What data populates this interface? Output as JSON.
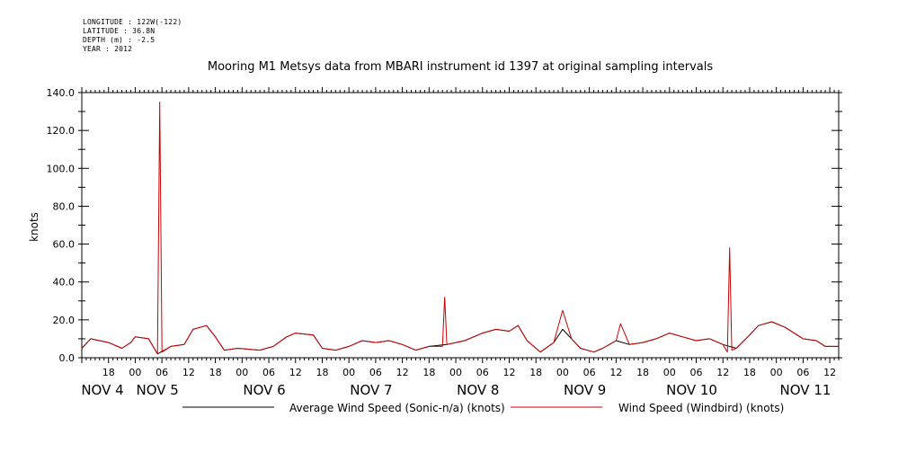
{
  "meta": {
    "longitude": "LONGITUDE : 122W(-122)",
    "latitude": "LATITUDE : 36.8N",
    "depth": "DEPTH (m) : -2.5",
    "year": "YEAR : 2012"
  },
  "chart_data": {
    "type": "line",
    "title": "Mooring M1 Metsys data from MBARI instrument id 1397 at original sampling intervals",
    "ylabel": "knots",
    "xlabel": "",
    "ylim": [
      0,
      140
    ],
    "y_ticks": [
      "0.0",
      "20.0",
      "40.0",
      "60.0",
      "80.0",
      "100.0",
      "120.0",
      "140.0"
    ],
    "x_range_hours": [
      "NOV 4 12:00",
      "NOV 11 14:00"
    ],
    "hour_tick_labels": [
      "18",
      "00",
      "06",
      "12",
      "18",
      "00",
      "06",
      "12",
      "18",
      "00",
      "06",
      "12",
      "18",
      "00",
      "06",
      "12",
      "18",
      "00",
      "06",
      "12",
      "18",
      "00",
      "06",
      "12",
      "18",
      "00",
      "06",
      "12",
      "18",
      "00",
      "06",
      "12"
    ],
    "day_labels": [
      "NOV 4",
      "NOV 5",
      "NOV 6",
      "NOV 7",
      "NOV 8",
      "NOV 9",
      "NOV 10",
      "NOV 11"
    ],
    "series": [
      {
        "name": "Average Wind Speed (Sonic-n/a) (knots)",
        "color": "#000000",
        "points": [
          [
            "NOV 4 12:00",
            5
          ],
          [
            "NOV 4 14:00",
            10
          ],
          [
            "NOV 4 18:00",
            8
          ],
          [
            "NOV 4 21:00",
            5
          ],
          [
            "NOV 4 23:00",
            8
          ],
          [
            "NOV 5 00:00",
            11
          ],
          [
            "NOV 5 03:00",
            10
          ],
          [
            "NOV 5 05:00",
            2
          ],
          [
            "NOV 5 08:00",
            6
          ],
          [
            "NOV 5 11:00",
            7
          ],
          [
            "NOV 5 13:00",
            15
          ],
          [
            "NOV 5 16:00",
            17
          ],
          [
            "NOV 5 18:00",
            11
          ],
          [
            "NOV 5 20:00",
            4
          ],
          [
            "NOV 5 23:00",
            5
          ],
          [
            "NOV 6 04:00",
            4
          ],
          [
            "NOV 6 07:00",
            6
          ],
          [
            "NOV 6 10:00",
            11
          ],
          [
            "NOV 6 12:00",
            13
          ],
          [
            "NOV 6 16:00",
            12
          ],
          [
            "NOV 6 18:00",
            5
          ],
          [
            "NOV 6 21:00",
            4
          ],
          [
            "NOV 7 00:00",
            6
          ],
          [
            "NOV 7 03:00",
            9
          ],
          [
            "NOV 7 06:00",
            8
          ],
          [
            "NOV 7 09:00",
            9
          ],
          [
            "NOV 7 12:00",
            7
          ],
          [
            "NOV 7 15:00",
            4
          ],
          [
            "NOV 7 18:00",
            6
          ],
          [
            "NOV 7 22:00",
            7
          ],
          [
            "NOV 8 02:00",
            9
          ],
          [
            "NOV 8 06:00",
            13
          ],
          [
            "NOV 8 09:00",
            15
          ],
          [
            "NOV 8 12:00",
            14
          ],
          [
            "NOV 8 14:00",
            17
          ],
          [
            "NOV 8 16:00",
            9
          ],
          [
            "NOV 8 19:00",
            3
          ],
          [
            "NOV 8 22:00",
            8
          ],
          [
            "NOV 9 00:00",
            15
          ],
          [
            "NOV 9 02:00",
            10
          ],
          [
            "NOV 9 04:00",
            5
          ],
          [
            "NOV 9 07:00",
            3
          ],
          [
            "NOV 9 09:00",
            5
          ],
          [
            "NOV 9 12:00",
            9
          ],
          [
            "NOV 9 15:00",
            7
          ],
          [
            "NOV 9 18:00",
            8
          ],
          [
            "NOV 9 21:00",
            10
          ],
          [
            "NOV 10 00:00",
            13
          ],
          [
            "NOV 10 03:00",
            11
          ],
          [
            "NOV 10 06:00",
            9
          ],
          [
            "NOV 10 09:00",
            10
          ],
          [
            "NOV 10 12:00",
            7
          ],
          [
            "NOV 10 15:00",
            5
          ],
          [
            "NOV 10 18:00",
            12
          ],
          [
            "NOV 10 20:00",
            17
          ],
          [
            "NOV 10 23:00",
            19
          ],
          [
            "NOV 11 02:00",
            16
          ],
          [
            "NOV 11 06:00",
            10
          ],
          [
            "NOV 11 09:00",
            9
          ],
          [
            "NOV 11 11:00",
            6
          ],
          [
            "NOV 11 14:00",
            6
          ]
        ]
      },
      {
        "name": "Wind Speed (Windbird) (knots)",
        "color": "#cc0000",
        "points": [
          [
            "NOV 4 12:00",
            5
          ],
          [
            "NOV 4 14:00",
            10
          ],
          [
            "NOV 4 18:00",
            8
          ],
          [
            "NOV 4 21:00",
            5
          ],
          [
            "NOV 4 23:00",
            8
          ],
          [
            "NOV 5 00:00",
            11
          ],
          [
            "NOV 5 03:00",
            10
          ],
          [
            "NOV 5 05:00",
            2
          ],
          [
            "NOV 5 05:30",
            135
          ],
          [
            "NOV 5 06:00",
            3
          ],
          [
            "NOV 5 08:00",
            6
          ],
          [
            "NOV 5 11:00",
            7
          ],
          [
            "NOV 5 13:00",
            15
          ],
          [
            "NOV 5 16:00",
            17
          ],
          [
            "NOV 5 18:00",
            11
          ],
          [
            "NOV 5 20:00",
            4
          ],
          [
            "NOV 5 23:00",
            5
          ],
          [
            "NOV 6 04:00",
            4
          ],
          [
            "NOV 6 07:00",
            6
          ],
          [
            "NOV 6 10:00",
            11
          ],
          [
            "NOV 6 12:00",
            13
          ],
          [
            "NOV 6 16:00",
            12
          ],
          [
            "NOV 6 18:00",
            5
          ],
          [
            "NOV 6 21:00",
            4
          ],
          [
            "NOV 7 00:00",
            6
          ],
          [
            "NOV 7 03:00",
            9
          ],
          [
            "NOV 7 06:00",
            8
          ],
          [
            "NOV 7 09:00",
            9
          ],
          [
            "NOV 7 12:00",
            7
          ],
          [
            "NOV 7 15:00",
            4
          ],
          [
            "NOV 7 18:00",
            6
          ],
          [
            "NOV 7 21:00",
            6
          ],
          [
            "NOV 7 21:30",
            32
          ],
          [
            "NOV 7 22:00",
            7
          ],
          [
            "NOV 8 02:00",
            9
          ],
          [
            "NOV 8 06:00",
            13
          ],
          [
            "NOV 8 09:00",
            15
          ],
          [
            "NOV 8 12:00",
            14
          ],
          [
            "NOV 8 14:00",
            17
          ],
          [
            "NOV 8 16:00",
            9
          ],
          [
            "NOV 8 19:00",
            3
          ],
          [
            "NOV 8 22:00",
            8
          ],
          [
            "NOV 9 00:00",
            25
          ],
          [
            "NOV 9 02:00",
            10
          ],
          [
            "NOV 9 04:00",
            5
          ],
          [
            "NOV 9 07:00",
            3
          ],
          [
            "NOV 9 09:00",
            5
          ],
          [
            "NOV 9 12:00",
            9
          ],
          [
            "NOV 9 13:00",
            18
          ],
          [
            "NOV 9 15:00",
            7
          ],
          [
            "NOV 9 18:00",
            8
          ],
          [
            "NOV 9 21:00",
            10
          ],
          [
            "NOV 10 00:00",
            13
          ],
          [
            "NOV 10 03:00",
            11
          ],
          [
            "NOV 10 06:00",
            9
          ],
          [
            "NOV 10 09:00",
            10
          ],
          [
            "NOV 10 12:00",
            7
          ],
          [
            "NOV 10 13:00",
            3
          ],
          [
            "NOV 10 13:30",
            58
          ],
          [
            "NOV 10 14:00",
            4
          ],
          [
            "NOV 10 15:00",
            5
          ],
          [
            "NOV 10 18:00",
            12
          ],
          [
            "NOV 10 20:00",
            17
          ],
          [
            "NOV 10 23:00",
            19
          ],
          [
            "NOV 11 02:00",
            16
          ],
          [
            "NOV 11 06:00",
            10
          ],
          [
            "NOV 11 09:00",
            9
          ],
          [
            "NOV 11 11:00",
            6
          ],
          [
            "NOV 11 14:00",
            6
          ]
        ]
      }
    ],
    "legend": {
      "placement": "bottom",
      "entries": [
        "Average Wind Speed (Sonic-n/a) (knots)",
        "Wind Speed (Windbird) (knots)"
      ]
    },
    "grid": false
  }
}
